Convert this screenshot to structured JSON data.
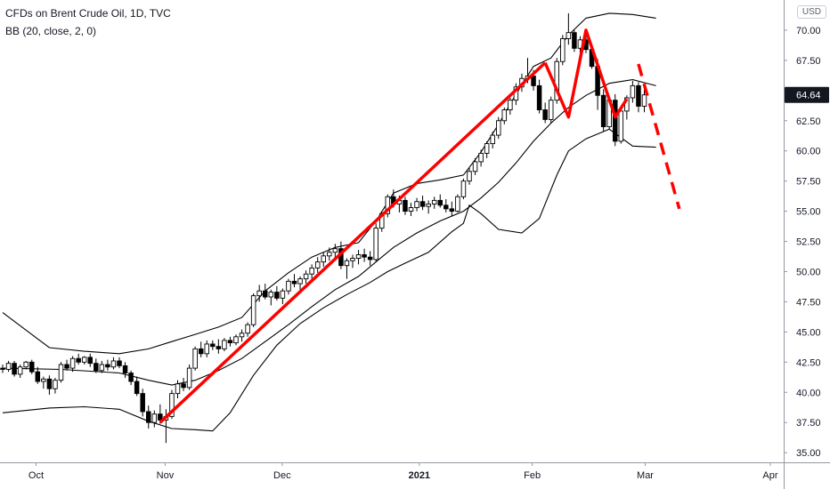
{
  "header": {
    "title": "CFDs on Brent Crude Oil, 1D, TVC",
    "indicator": "BB (20, close, 2, 0)",
    "currency": "USD"
  },
  "chart_data": {
    "type": "candlestick",
    "y_axis": {
      "ticks": [
        "35.00",
        "37.50",
        "40.00",
        "42.50",
        "45.00",
        "47.50",
        "50.00",
        "52.50",
        "55.00",
        "57.50",
        "60.00",
        "62.50",
        "64.64",
        "67.50",
        "70.00"
      ],
      "range": [
        34.2,
        72.5
      ],
      "position": "right"
    },
    "x_axis": {
      "ticks": [
        {
          "label": "Oct",
          "date": "2020-10-01"
        },
        {
          "label": "Nov",
          "date": "2020-11-02"
        },
        {
          "label": "Dec",
          "date": "2020-12-01"
        },
        {
          "label": "2021",
          "date": "2021-01-04"
        },
        {
          "label": "Feb",
          "date": "2021-02-01"
        },
        {
          "label": "Mar",
          "date": "2021-03-01"
        },
        {
          "label": "Apr",
          "date": "2021-04-01"
        }
      ]
    },
    "last_price": 64.64,
    "colors": {
      "up": "#ffffff",
      "down": "#000000",
      "wick": "#000000",
      "bands": "#000000",
      "annotation": "#ff0000",
      "price_tag": "#131722"
    },
    "candles": [
      [
        42.0,
        42.3,
        41.6,
        41.9
      ],
      [
        41.9,
        42.6,
        41.7,
        42.4
      ],
      [
        42.4,
        42.6,
        41.3,
        41.5
      ],
      [
        41.5,
        42.3,
        41.2,
        42.1
      ],
      [
        42.1,
        42.6,
        41.9,
        42.5
      ],
      [
        42.5,
        42.7,
        41.5,
        41.7
      ],
      [
        41.7,
        42.1,
        40.7,
        40.9
      ],
      [
        40.9,
        41.3,
        40.3,
        41.1
      ],
      [
        41.1,
        41.4,
        39.8,
        40.3
      ],
      [
        40.3,
        41.2,
        39.9,
        41.0
      ],
      [
        41.0,
        42.5,
        40.8,
        42.3
      ],
      [
        42.3,
        42.7,
        41.8,
        42.0
      ],
      [
        42.0,
        43.0,
        41.7,
        42.8
      ],
      [
        42.8,
        43.2,
        42.3,
        42.5
      ],
      [
        42.5,
        43.0,
        42.3,
        42.9
      ],
      [
        42.9,
        43.2,
        42.1,
        42.4
      ],
      [
        42.4,
        42.8,
        41.6,
        41.8
      ],
      [
        41.8,
        42.6,
        41.6,
        42.3
      ],
      [
        42.3,
        42.7,
        41.8,
        42.1
      ],
      [
        42.1,
        42.9,
        41.9,
        42.6
      ],
      [
        42.6,
        42.9,
        42.0,
        42.2
      ],
      [
        42.2,
        42.5,
        41.2,
        41.6
      ],
      [
        41.6,
        41.8,
        40.6,
        40.9
      ],
      [
        40.9,
        41.3,
        39.7,
        39.9
      ],
      [
        39.9,
        40.3,
        38.0,
        38.4
      ],
      [
        38.4,
        38.9,
        37.0,
        37.5
      ],
      [
        37.5,
        38.5,
        37.1,
        38.2
      ],
      [
        38.2,
        39.0,
        37.4,
        37.7
      ],
      [
        37.7,
        38.6,
        35.8,
        38.0
      ],
      [
        38.0,
        40.2,
        37.8,
        39.9
      ],
      [
        39.9,
        41.0,
        39.5,
        40.7
      ],
      [
        40.7,
        41.2,
        40.1,
        40.4
      ],
      [
        40.4,
        42.3,
        40.2,
        42.0
      ],
      [
        42.0,
        43.8,
        41.8,
        43.6
      ],
      [
        43.6,
        44.2,
        42.9,
        43.2
      ],
      [
        43.2,
        44.3,
        42.9,
        44.0
      ],
      [
        44.0,
        44.3,
        43.5,
        43.8
      ],
      [
        43.8,
        44.4,
        43.2,
        43.6
      ],
      [
        43.6,
        44.5,
        43.4,
        44.3
      ],
      [
        44.3,
        44.6,
        43.8,
        44.1
      ],
      [
        44.1,
        44.8,
        43.9,
        44.6
      ],
      [
        44.6,
        45.2,
        44.2,
        44.9
      ],
      [
        44.9,
        45.8,
        44.6,
        45.6
      ],
      [
        45.6,
        48.2,
        45.4,
        48.0
      ],
      [
        48.0,
        48.9,
        47.5,
        48.4
      ],
      [
        48.4,
        49.0,
        47.7,
        47.9
      ],
      [
        47.9,
        48.5,
        47.2,
        48.3
      ],
      [
        48.3,
        48.8,
        47.6,
        47.8
      ],
      [
        47.8,
        48.6,
        47.3,
        48.4
      ],
      [
        48.4,
        49.4,
        48.1,
        49.2
      ],
      [
        49.2,
        49.8,
        48.7,
        49.0
      ],
      [
        49.0,
        49.6,
        48.5,
        49.4
      ],
      [
        49.4,
        50.1,
        49.0,
        49.8
      ],
      [
        49.8,
        50.6,
        49.3,
        50.3
      ],
      [
        50.3,
        51.2,
        49.9,
        50.8
      ],
      [
        50.8,
        51.6,
        50.4,
        51.3
      ],
      [
        51.3,
        52.0,
        50.9,
        51.6
      ],
      [
        51.6,
        52.3,
        51.1,
        51.9
      ],
      [
        51.9,
        52.5,
        50.2,
        50.5
      ],
      [
        50.5,
        51.1,
        49.4,
        50.9
      ],
      [
        50.9,
        51.4,
        50.3,
        51.1
      ],
      [
        51.1,
        51.8,
        50.6,
        51.4
      ],
      [
        51.4,
        51.9,
        50.8,
        51.2
      ],
      [
        51.2,
        51.7,
        50.5,
        51.0
      ],
      [
        51.0,
        54.0,
        50.8,
        53.6
      ],
      [
        53.6,
        55.0,
        53.3,
        54.8
      ],
      [
        54.8,
        56.4,
        54.5,
        56.2
      ],
      [
        56.2,
        56.8,
        55.3,
        55.6
      ],
      [
        55.6,
        56.3,
        54.9,
        55.9
      ],
      [
        55.9,
        56.2,
        54.7,
        55.0
      ],
      [
        55.0,
        55.7,
        54.6,
        55.3
      ],
      [
        55.3,
        56.1,
        55.0,
        55.8
      ],
      [
        55.8,
        56.3,
        55.1,
        55.4
      ],
      [
        55.4,
        55.9,
        54.8,
        55.6
      ],
      [
        55.6,
        56.2,
        55.2,
        55.9
      ],
      [
        55.9,
        56.4,
        55.3,
        55.5
      ],
      [
        55.5,
        56.0,
        54.9,
        55.2
      ],
      [
        55.2,
        55.8,
        54.6,
        55.0
      ],
      [
        55.0,
        56.4,
        54.9,
        56.2
      ],
      [
        56.2,
        57.7,
        56.0,
        57.5
      ],
      [
        57.5,
        58.6,
        57.2,
        58.3
      ],
      [
        58.3,
        59.4,
        58.0,
        59.1
      ],
      [
        59.1,
        60.1,
        58.7,
        59.8
      ],
      [
        59.8,
        60.8,
        59.4,
        60.6
      ],
      [
        60.6,
        61.6,
        60.2,
        61.3
      ],
      [
        61.3,
        62.8,
        61.0,
        62.5
      ],
      [
        62.5,
        63.6,
        62.2,
        63.4
      ],
      [
        63.4,
        64.4,
        63.0,
        64.2
      ],
      [
        64.2,
        65.6,
        63.8,
        65.3
      ],
      [
        65.3,
        66.4,
        64.9,
        66.0
      ],
      [
        66.0,
        67.7,
        65.6,
        66.2
      ],
      [
        66.2,
        66.7,
        65.0,
        65.4
      ],
      [
        65.4,
        65.9,
        63.1,
        63.4
      ],
      [
        63.4,
        64.0,
        62.3,
        62.6
      ],
      [
        62.6,
        64.5,
        62.3,
        64.2
      ],
      [
        64.2,
        67.7,
        63.9,
        67.4
      ],
      [
        67.4,
        69.6,
        67.1,
        69.3
      ],
      [
        69.3,
        71.4,
        68.8,
        69.8
      ],
      [
        69.8,
        70.0,
        68.2,
        68.5
      ],
      [
        68.5,
        69.5,
        67.9,
        69.2
      ],
      [
        69.2,
        69.6,
        68.1,
        68.4
      ],
      [
        68.4,
        68.9,
        66.8,
        67.0
      ],
      [
        67.0,
        67.6,
        63.4,
        64.6
      ],
      [
        64.6,
        65.1,
        61.6,
        62.0
      ],
      [
        62.0,
        64.5,
        61.8,
        64.2
      ],
      [
        64.2,
        64.7,
        60.4,
        60.8
      ],
      [
        60.8,
        63.6,
        60.6,
        63.3
      ],
      [
        63.3,
        64.6,
        62.6,
        64.4
      ],
      [
        64.4,
        65.8,
        64.0,
        65.4
      ],
      [
        65.4,
        65.7,
        63.2,
        63.7
      ],
      [
        63.7,
        65.1,
        63.2,
        64.64
      ]
    ],
    "bb_upper": [
      [
        0,
        46.6
      ],
      [
        8,
        43.7
      ],
      [
        14,
        43.4
      ],
      [
        20,
        43.2
      ],
      [
        25,
        43.6
      ],
      [
        29,
        44.2
      ],
      [
        33,
        44.8
      ],
      [
        37,
        45.4
      ],
      [
        41,
        46.2
      ],
      [
        45,
        48.4
      ],
      [
        49,
        49.9
      ],
      [
        53,
        51.2
      ],
      [
        57,
        52.0
      ],
      [
        61,
        52.4
      ],
      [
        64,
        54.2
      ],
      [
        67,
        56.5
      ],
      [
        71,
        57.3
      ],
      [
        75,
        57.6
      ],
      [
        79,
        58.0
      ],
      [
        82,
        59.9
      ],
      [
        85,
        62.2
      ],
      [
        88,
        64.7
      ],
      [
        91,
        67.0
      ],
      [
        94,
        67.7
      ],
      [
        97,
        69.6
      ],
      [
        100,
        71.0
      ],
      [
        104,
        71.4
      ],
      [
        108,
        71.3
      ],
      [
        112,
        71.0
      ]
    ],
    "bb_basis": [
      [
        0,
        42.0
      ],
      [
        10,
        41.9
      ],
      [
        20,
        41.6
      ],
      [
        25,
        41.0
      ],
      [
        29,
        40.6
      ],
      [
        33,
        41.0
      ],
      [
        37,
        41.8
      ],
      [
        41,
        42.8
      ],
      [
        45,
        44.2
      ],
      [
        49,
        45.6
      ],
      [
        53,
        47.1
      ],
      [
        57,
        48.5
      ],
      [
        61,
        49.6
      ],
      [
        64,
        50.8
      ],
      [
        67,
        52.0
      ],
      [
        71,
        53.2
      ],
      [
        75,
        54.2
      ],
      [
        79,
        55.0
      ],
      [
        82,
        56.1
      ],
      [
        85,
        57.4
      ],
      [
        88,
        59.0
      ],
      [
        91,
        60.8
      ],
      [
        94,
        62.3
      ],
      [
        97,
        63.6
      ],
      [
        100,
        64.6
      ],
      [
        104,
        65.6
      ],
      [
        108,
        65.9
      ],
      [
        112,
        65.4
      ]
    ],
    "bb_lower": [
      [
        0,
        38.3
      ],
      [
        8,
        38.7
      ],
      [
        14,
        38.8
      ],
      [
        20,
        38.6
      ],
      [
        25,
        37.6
      ],
      [
        29,
        37.0
      ],
      [
        33,
        36.9
      ],
      [
        36,
        36.8
      ],
      [
        39,
        38.3
      ],
      [
        43,
        41.4
      ],
      [
        47,
        43.9
      ],
      [
        51,
        45.7
      ],
      [
        55,
        47.0
      ],
      [
        59,
        48.1
      ],
      [
        63,
        49.1
      ],
      [
        66,
        50.0
      ],
      [
        69,
        50.7
      ],
      [
        73,
        51.6
      ],
      [
        77,
        53.3
      ],
      [
        79,
        54.0
      ],
      [
        80,
        55.5
      ],
      [
        82,
        54.8
      ],
      [
        85,
        53.5
      ],
      [
        89,
        53.2
      ],
      [
        92,
        54.4
      ],
      [
        95,
        58.0
      ],
      [
        97,
        60.0
      ],
      [
        100,
        61.0
      ],
      [
        104,
        61.8
      ],
      [
        108,
        60.4
      ],
      [
        112,
        60.3
      ]
    ],
    "annotation_lines": [
      {
        "points": [
          [
            27,
            37.5
          ],
          [
            93,
            67.3
          ]
        ],
        "dashed": false
      },
      {
        "points": [
          [
            93,
            67.3
          ],
          [
            97,
            62.8
          ],
          [
            100,
            70.0
          ],
          [
            105,
            62.8
          ],
          [
            107,
            64.3
          ]
        ],
        "dashed": false
      },
      {
        "points": [
          [
            109,
            67.2
          ],
          [
            116,
            55.2
          ]
        ],
        "dashed": true
      }
    ]
  }
}
